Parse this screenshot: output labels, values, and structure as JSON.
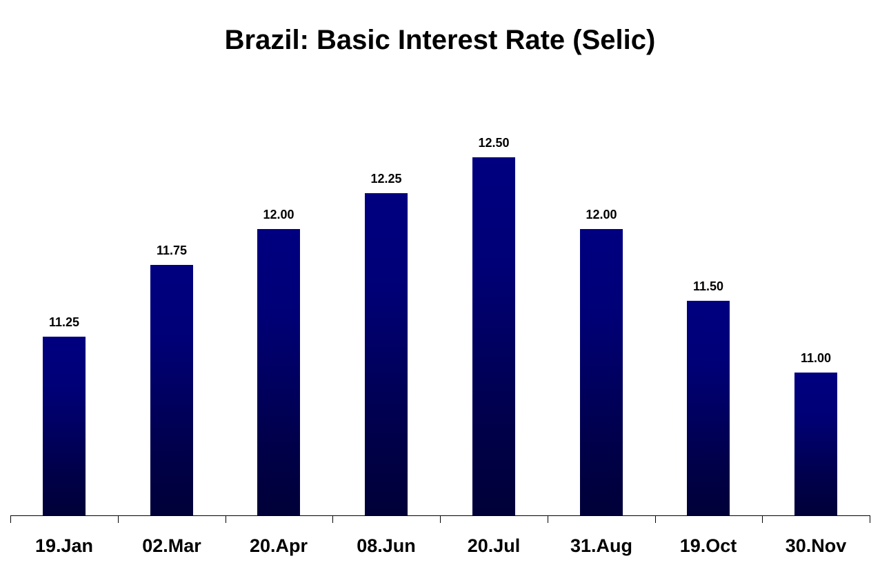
{
  "chart_data": {
    "type": "bar",
    "title": "Brazil: Basic Interest Rate (Selic)",
    "xlabel": "",
    "ylabel": "",
    "categories": [
      "19.Jan",
      "02.Mar",
      "20.Apr",
      "08.Jun",
      "20.Jul",
      "31.Aug",
      "19.Oct",
      "30.Nov"
    ],
    "values": [
      11.25,
      11.75,
      12.0,
      12.25,
      12.5,
      12.0,
      11.5,
      11.0
    ],
    "value_labels": [
      "11.25",
      "11.75",
      "12.00",
      "12.25",
      "12.50",
      "12.00",
      "11.50",
      "11.00"
    ],
    "ylim": [
      10,
      13
    ],
    "grid": false,
    "legend": "none",
    "bar_color": "#000080"
  }
}
